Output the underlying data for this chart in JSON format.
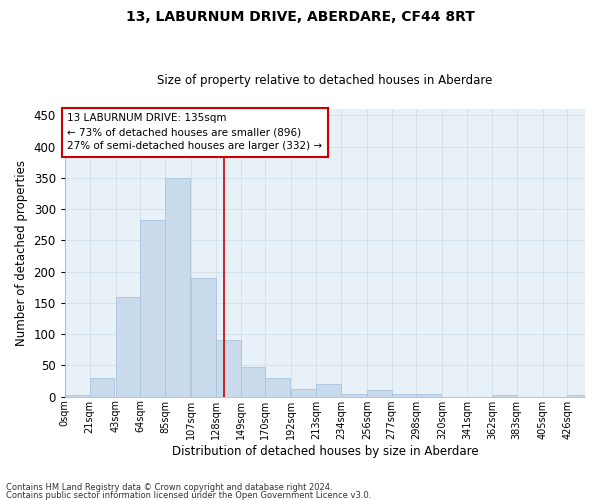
{
  "title1": "13, LABURNUM DRIVE, ABERDARE, CF44 8RT",
  "title2": "Size of property relative to detached houses in Aberdare",
  "xlabel": "Distribution of detached houses by size in Aberdare",
  "ylabel": "Number of detached properties",
  "bin_labels": [
    "0sqm",
    "21sqm",
    "43sqm",
    "64sqm",
    "85sqm",
    "107sqm",
    "128sqm",
    "149sqm",
    "170sqm",
    "192sqm",
    "213sqm",
    "234sqm",
    "256sqm",
    "277sqm",
    "298sqm",
    "320sqm",
    "341sqm",
    "362sqm",
    "383sqm",
    "405sqm",
    "426sqm"
  ],
  "bar_heights": [
    2,
    30,
    160,
    283,
    350,
    190,
    90,
    48,
    30,
    13,
    20,
    5,
    10,
    4,
    4,
    0,
    0,
    3,
    0,
    0,
    3
  ],
  "bar_color": "#c9daea",
  "bar_edge_color": "#a8c4e0",
  "grid_color": "#d4e2ee",
  "background_color": "#e8f0f8",
  "property_line_x": 135,
  "annotation_text": "13 LABURNUM DRIVE: 135sqm\n← 73% of detached houses are smaller (896)\n27% of semi-detached houses are larger (332) →",
  "annotation_box_color": "#ffffff",
  "annotation_box_edge": "#cc0000",
  "footnote1": "Contains HM Land Registry data © Crown copyright and database right 2024.",
  "footnote2": "Contains public sector information licensed under the Open Government Licence v3.0.",
  "ylim": [
    0,
    460
  ],
  "xlim": [
    0,
    441
  ],
  "bin_width": 21
}
